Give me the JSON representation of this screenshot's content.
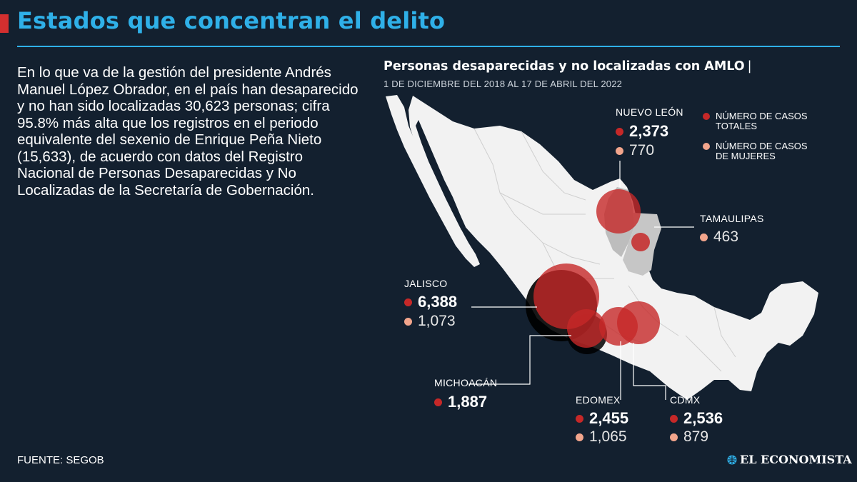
{
  "header": {
    "title": "Estados que concentran el delito"
  },
  "intro": "En lo que va de la gestión del presidente Andrés Manuel López Obrador, en el país han desaparecido y no han sido localizadas 30,623 personas; cifra 95.8% más alta que los registros en el periodo equivalente del sexenio de Enrique Peña Nieto (15,633), de acuerdo con datos del Registro Nacional de Personas Desaparecidas y No Localizadas de la Secretaría de Gobernación.",
  "map": {
    "title": "Personas desaparecidas y no localizadas con AMLO",
    "title_separator": "|",
    "subtitle": "1 DE DICIEMBRE DEL 2018 AL 17 DE ABRIL DEL 2022",
    "legend": {
      "total": "NÚMERO DE CASOS TOTALES",
      "women": "NÚMERO DE CASOS DE MUJERES"
    },
    "colors": {
      "total": "#c62828",
      "women": "#f2a58c",
      "land": "#f2f2f2",
      "highlight": "#bdbdbd"
    },
    "states": [
      {
        "id": "nuevo-leon",
        "name": "NUEVO LEÓN",
        "total": "2,373",
        "women": "770"
      },
      {
        "id": "tamaulipas",
        "name": "TAMAULIPAS",
        "women": "463"
      },
      {
        "id": "jalisco",
        "name": "JALISCO",
        "total": "6,388",
        "women": "1,073"
      },
      {
        "id": "michoacan",
        "name": "MICHOACÁN",
        "total": "1,887"
      },
      {
        "id": "edomex",
        "name": "EDOMEX",
        "total": "2,455",
        "women": "1,065"
      },
      {
        "id": "cdmx",
        "name": "CDMX",
        "total": "2,536",
        "women": "879"
      }
    ]
  },
  "footer": {
    "source": "FUENTE: SEGOB",
    "logo": "EL ECONOMISTA"
  }
}
